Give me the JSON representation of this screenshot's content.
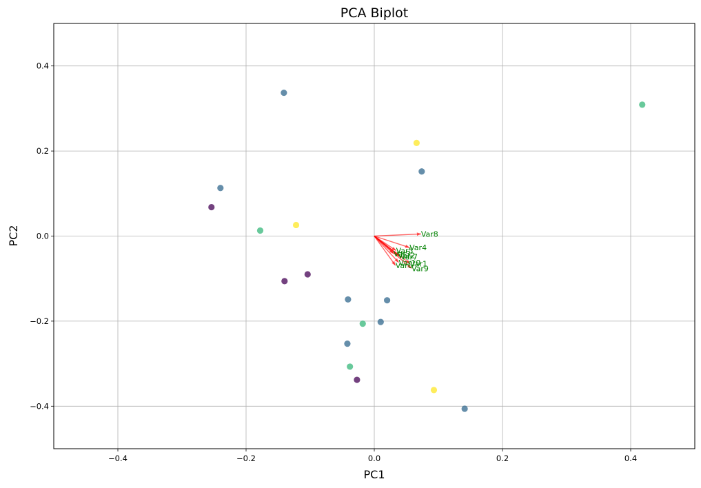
{
  "chart_data": {
    "type": "scatter",
    "title": "PCA Biplot",
    "xlabel": "PC1",
    "ylabel": "PC2",
    "xlim": [
      -0.5,
      0.5
    ],
    "ylim": [
      -0.5,
      0.5
    ],
    "x_ticks": [
      -0.4,
      -0.2,
      0.0,
      0.2,
      0.4
    ],
    "y_ticks": [
      -0.4,
      -0.2,
      0.0,
      0.2,
      0.4
    ],
    "x_tick_labels": [
      "−0.4",
      "−0.2",
      "0.0",
      "0.2",
      "0.4"
    ],
    "y_tick_labels": [
      "−0.4",
      "−0.2",
      "0.0",
      "0.2",
      "0.4"
    ],
    "grid": true,
    "colors": {
      "class0": "#440154",
      "class1": "#31688e",
      "class2": "#35b779",
      "class3": "#fde725",
      "arrow": "#ff0000",
      "arrow_label": "#008000",
      "grid": "#b0b0b0"
    },
    "points": [
      {
        "x": -0.141,
        "y": 0.337,
        "class": 1
      },
      {
        "x": 0.418,
        "y": 0.309,
        "class": 2
      },
      {
        "x": 0.066,
        "y": 0.219,
        "class": 3
      },
      {
        "x": 0.074,
        "y": 0.152,
        "class": 1
      },
      {
        "x": -0.24,
        "y": 0.113,
        "class": 1
      },
      {
        "x": -0.254,
        "y": 0.068,
        "class": 0
      },
      {
        "x": -0.122,
        "y": 0.026,
        "class": 3
      },
      {
        "x": -0.178,
        "y": 0.013,
        "class": 2
      },
      {
        "x": -0.104,
        "y": -0.09,
        "class": 0
      },
      {
        "x": -0.14,
        "y": -0.106,
        "class": 0
      },
      {
        "x": -0.041,
        "y": -0.149,
        "class": 1
      },
      {
        "x": 0.02,
        "y": -0.151,
        "class": 1
      },
      {
        "x": 0.01,
        "y": -0.202,
        "class": 1
      },
      {
        "x": -0.018,
        "y": -0.206,
        "class": 2
      },
      {
        "x": -0.042,
        "y": -0.253,
        "class": 1
      },
      {
        "x": -0.038,
        "y": -0.307,
        "class": 2
      },
      {
        "x": -0.027,
        "y": -0.338,
        "class": 0
      },
      {
        "x": 0.093,
        "y": -0.362,
        "class": 3
      },
      {
        "x": 0.141,
        "y": -0.406,
        "class": 1
      }
    ],
    "loadings": [
      {
        "name": "Var8",
        "x": 0.073,
        "y": 0.005
      },
      {
        "name": "Var4",
        "x": 0.055,
        "y": -0.027
      },
      {
        "name": "Var5",
        "x": 0.034,
        "y": -0.034
      },
      {
        "name": "Var3",
        "x": 0.03,
        "y": -0.041
      },
      {
        "name": "Var2",
        "x": 0.037,
        "y": -0.045
      },
      {
        "name": "Var7",
        "x": 0.041,
        "y": -0.049
      },
      {
        "name": "Var10",
        "x": 0.038,
        "y": -0.062
      },
      {
        "name": "Var1",
        "x": 0.056,
        "y": -0.065
      },
      {
        "name": "Var6",
        "x": 0.033,
        "y": -0.069
      },
      {
        "name": "Var9",
        "x": 0.058,
        "y": -0.076
      }
    ]
  }
}
